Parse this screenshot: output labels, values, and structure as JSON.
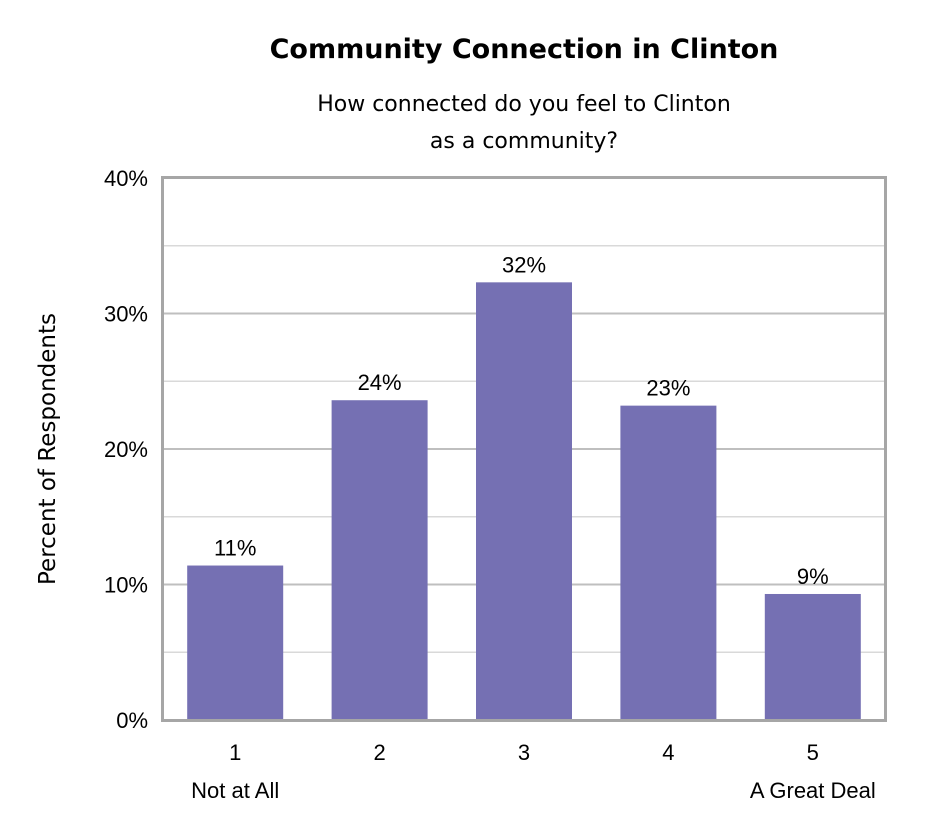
{
  "chart_data": {
    "type": "bar",
    "title": "Community Connection in Clinton",
    "subtitle": [
      "How connected do you feel to Clinton",
      "as a community?"
    ],
    "ylabel": "Percent of Respondents",
    "xlabel": "",
    "categories": [
      "1",
      "2",
      "3",
      "4",
      "5"
    ],
    "category_sublabels": [
      "Not at All",
      "",
      "",
      "",
      "A Great Deal"
    ],
    "values": [
      11.4,
      23.6,
      32.3,
      23.2,
      9.3
    ],
    "data_labels": [
      "11%",
      "24%",
      "32%",
      "23%",
      "9%"
    ],
    "ylim": [
      0,
      40
    ],
    "yticks": [
      "0%",
      "10%",
      "20%",
      "30%",
      "40%"
    ],
    "grid": true,
    "bar_color": "#7570b3"
  }
}
